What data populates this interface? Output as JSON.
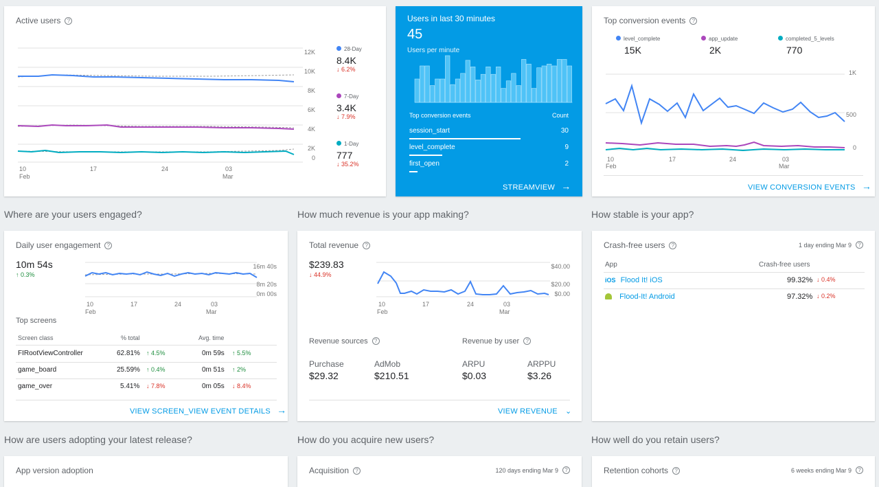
{
  "active_users": {
    "title": "Active users",
    "yticks": [
      "12K",
      "10K",
      "8K",
      "6K",
      "4K",
      "2K",
      "0"
    ],
    "xticks": [
      {
        "d": "10",
        "m": "Feb"
      },
      {
        "d": "17",
        "m": ""
      },
      {
        "d": "24",
        "m": ""
      },
      {
        "d": "03",
        "m": "Mar"
      }
    ],
    "legend": [
      {
        "label": "28-Day",
        "value": "8.4K",
        "change": "↓ 6.2%",
        "color": "#4285f4"
      },
      {
        "label": "7-Day",
        "value": "3.4K",
        "change": "↓ 7.9%",
        "color": "#ab47bc"
      },
      {
        "label": "1-Day",
        "value": "777",
        "change": "↓ 35.2%",
        "color": "#00acc1"
      }
    ]
  },
  "realtime": {
    "title": "Users in last 30 minutes",
    "count": "45",
    "subtitle": "Users per minute",
    "table_header": {
      "event": "Top conversion events",
      "count": "Count"
    },
    "rows": [
      {
        "event": "session_start",
        "count": "30",
        "fraction": 1.0
      },
      {
        "event": "level_complete",
        "count": "9",
        "fraction": 0.3
      },
      {
        "event": "first_open",
        "count": "2",
        "fraction": 0.07
      }
    ],
    "link": "STREAMVIEW",
    "bars": [
      0.5,
      0.78,
      0.78,
      0.36,
      0.5,
      0.5,
      1.0,
      0.38,
      0.5,
      0.62,
      0.9,
      0.76,
      0.48,
      0.6,
      0.76,
      0.6,
      0.76,
      0.3,
      0.46,
      0.62,
      0.36,
      0.92,
      0.82,
      0.3,
      0.74,
      0.78,
      0.82,
      0.78,
      0.92,
      0.92,
      0.78
    ]
  },
  "conversion": {
    "title": "Top conversion events",
    "legend": [
      {
        "label": "level_complete",
        "value": "15K",
        "color": "#4285f4"
      },
      {
        "label": "app_update",
        "value": "2K",
        "color": "#ab47bc"
      },
      {
        "label": "completed_5_levels",
        "value": "770",
        "color": "#00acc1"
      }
    ],
    "yticks": [
      "1K",
      "500",
      "0"
    ],
    "xticks": [
      {
        "d": "10",
        "m": "Feb"
      },
      {
        "d": "17",
        "m": ""
      },
      {
        "d": "24",
        "m": ""
      },
      {
        "d": "03",
        "m": "Mar"
      }
    ],
    "link": "VIEW CONVERSION EVENTS"
  },
  "sections": {
    "engaged": "Where are your users engaged?",
    "revenue": "How much revenue is your app making?",
    "stable": "How stable is your app?",
    "adopting": "How are users adopting your latest release?",
    "acquire": "How do you acquire new users?",
    "retain": "How well do you retain users?"
  },
  "engagement": {
    "title": "Daily user engagement",
    "value": "10m 54s",
    "change": "↑ 0.3%",
    "yticks": [
      "16m 40s",
      "8m 20s",
      "0m 00s"
    ],
    "xticks": [
      {
        "d": "10",
        "m": "Feb"
      },
      {
        "d": "17",
        "m": ""
      },
      {
        "d": "24",
        "m": ""
      },
      {
        "d": "03",
        "m": "Mar"
      }
    ],
    "top_screens": "Top screens",
    "headers": {
      "screen": "Screen class",
      "pct": "% total",
      "time": "Avg. time"
    },
    "rows": [
      {
        "screen": "FIRootViewController",
        "pct": "62.81%",
        "pct_change": "↑ 4.5%",
        "pct_dir": "up",
        "time": "0m 59s",
        "time_change": "↑ 5.5%",
        "time_dir": "up"
      },
      {
        "screen": "game_board",
        "pct": "25.59%",
        "pct_change": "↑ 0.4%",
        "pct_dir": "up",
        "time": "0m 51s",
        "time_change": "↑ 2%",
        "time_dir": "up"
      },
      {
        "screen": "game_over",
        "pct": "5.41%",
        "pct_change": "↓ 7.8%",
        "pct_dir": "down",
        "time": "0m 05s",
        "time_change": "↓ 8.4%",
        "time_dir": "down"
      }
    ],
    "link": "VIEW SCREEN_VIEW EVENT DETAILS"
  },
  "revenue": {
    "title": "Total revenue",
    "value": "$239.83",
    "change": "↓ 44.9%",
    "yticks": [
      "$40.00",
      "$20.00",
      "$0.00"
    ],
    "xticks": [
      {
        "d": "10",
        "m": "Feb"
      },
      {
        "d": "17",
        "m": ""
      },
      {
        "d": "24",
        "m": ""
      },
      {
        "d": "03",
        "m": "Mar"
      }
    ],
    "sources_title": "Revenue sources",
    "by_user_title": "Revenue by user",
    "sources": [
      {
        "label": "Purchase",
        "value": "$29.32"
      },
      {
        "label": "AdMob",
        "value": "$210.51"
      }
    ],
    "by_user": [
      {
        "label": "ARPU",
        "value": "$0.03"
      },
      {
        "label": "ARPPU",
        "value": "$3.26"
      }
    ],
    "link": "VIEW REVENUE"
  },
  "crash": {
    "title": "Crash-free users",
    "period": "1 day ending Mar 9",
    "headers": {
      "app": "App",
      "users": "Crash-free users"
    },
    "rows": [
      {
        "platform": "iOS",
        "app": "Flood It! iOS",
        "value": "99.32%",
        "change": "↓ 0.4%"
      },
      {
        "platform": "android",
        "app": "Flood-It! Android",
        "value": "97.32%",
        "change": "↓ 0.2%"
      }
    ]
  },
  "bottom": {
    "adoption": "App version adoption",
    "acquisition": "Acquisition",
    "acquisition_period": "120 days ending Mar 9",
    "retention": "Retention cohorts",
    "retention_period": "6 weeks ending Mar 9"
  }
}
